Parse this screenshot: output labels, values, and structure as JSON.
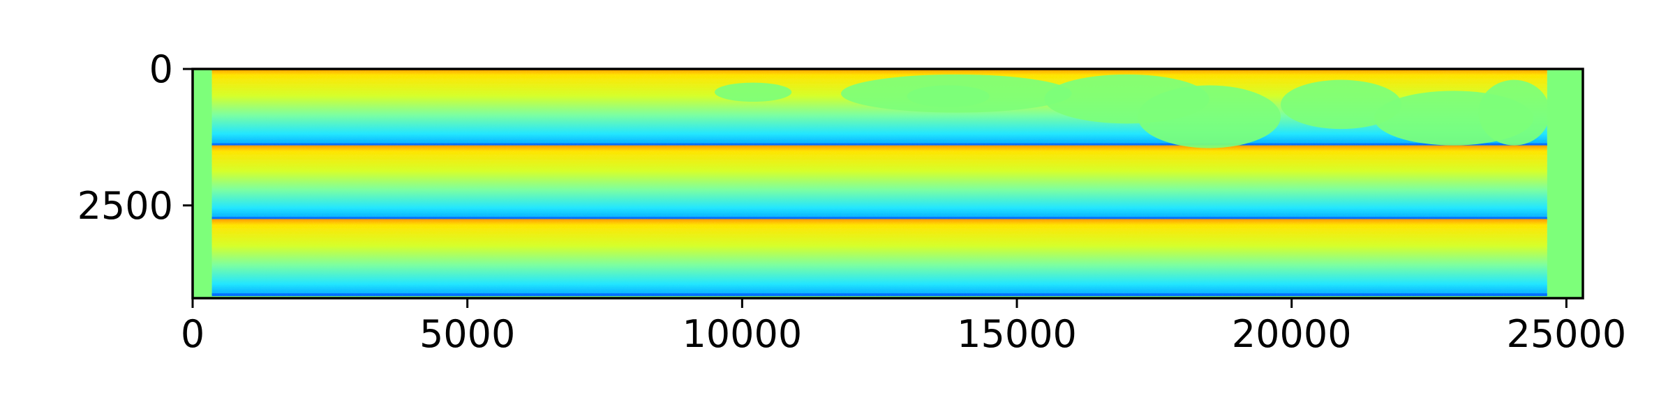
{
  "chart_data": {
    "type": "heatmap",
    "title": "",
    "xlabel": "",
    "ylabel": "",
    "xlim": [
      0,
      25300
    ],
    "ylim": [
      4200,
      0
    ],
    "x_ticks": [
      {
        "value": 0,
        "label": "0"
      },
      {
        "value": 5000,
        "label": "5000"
      },
      {
        "value": 10000,
        "label": "10000"
      },
      {
        "value": 15000,
        "label": "15000"
      },
      {
        "value": 20000,
        "label": "20000"
      },
      {
        "value": 25000,
        "label": "25000"
      }
    ],
    "y_ticks": [
      {
        "value": 0,
        "label": "0"
      },
      {
        "value": 2500,
        "label": "2500"
      }
    ],
    "colormap": "jet",
    "background_value_color": "#7dff7a",
    "data_region": {
      "x_start": 350,
      "x_end": 24650
    },
    "band_boundaries": [
      0,
      1400,
      2750,
      4150
    ],
    "band_profile": {
      "description_stops": [
        {
          "fraction": 0.0,
          "color": "#ff9a00"
        },
        {
          "fraction": 0.08,
          "color": "#ffe500"
        },
        {
          "fraction": 0.35,
          "color": "#d6ff2a"
        },
        {
          "fraction": 0.6,
          "color": "#7dffa0"
        },
        {
          "fraction": 0.85,
          "color": "#22e6ff"
        },
        {
          "fraction": 1.0,
          "color": "#00a8ff"
        }
      ]
    },
    "grid": false,
    "legend": "none"
  }
}
